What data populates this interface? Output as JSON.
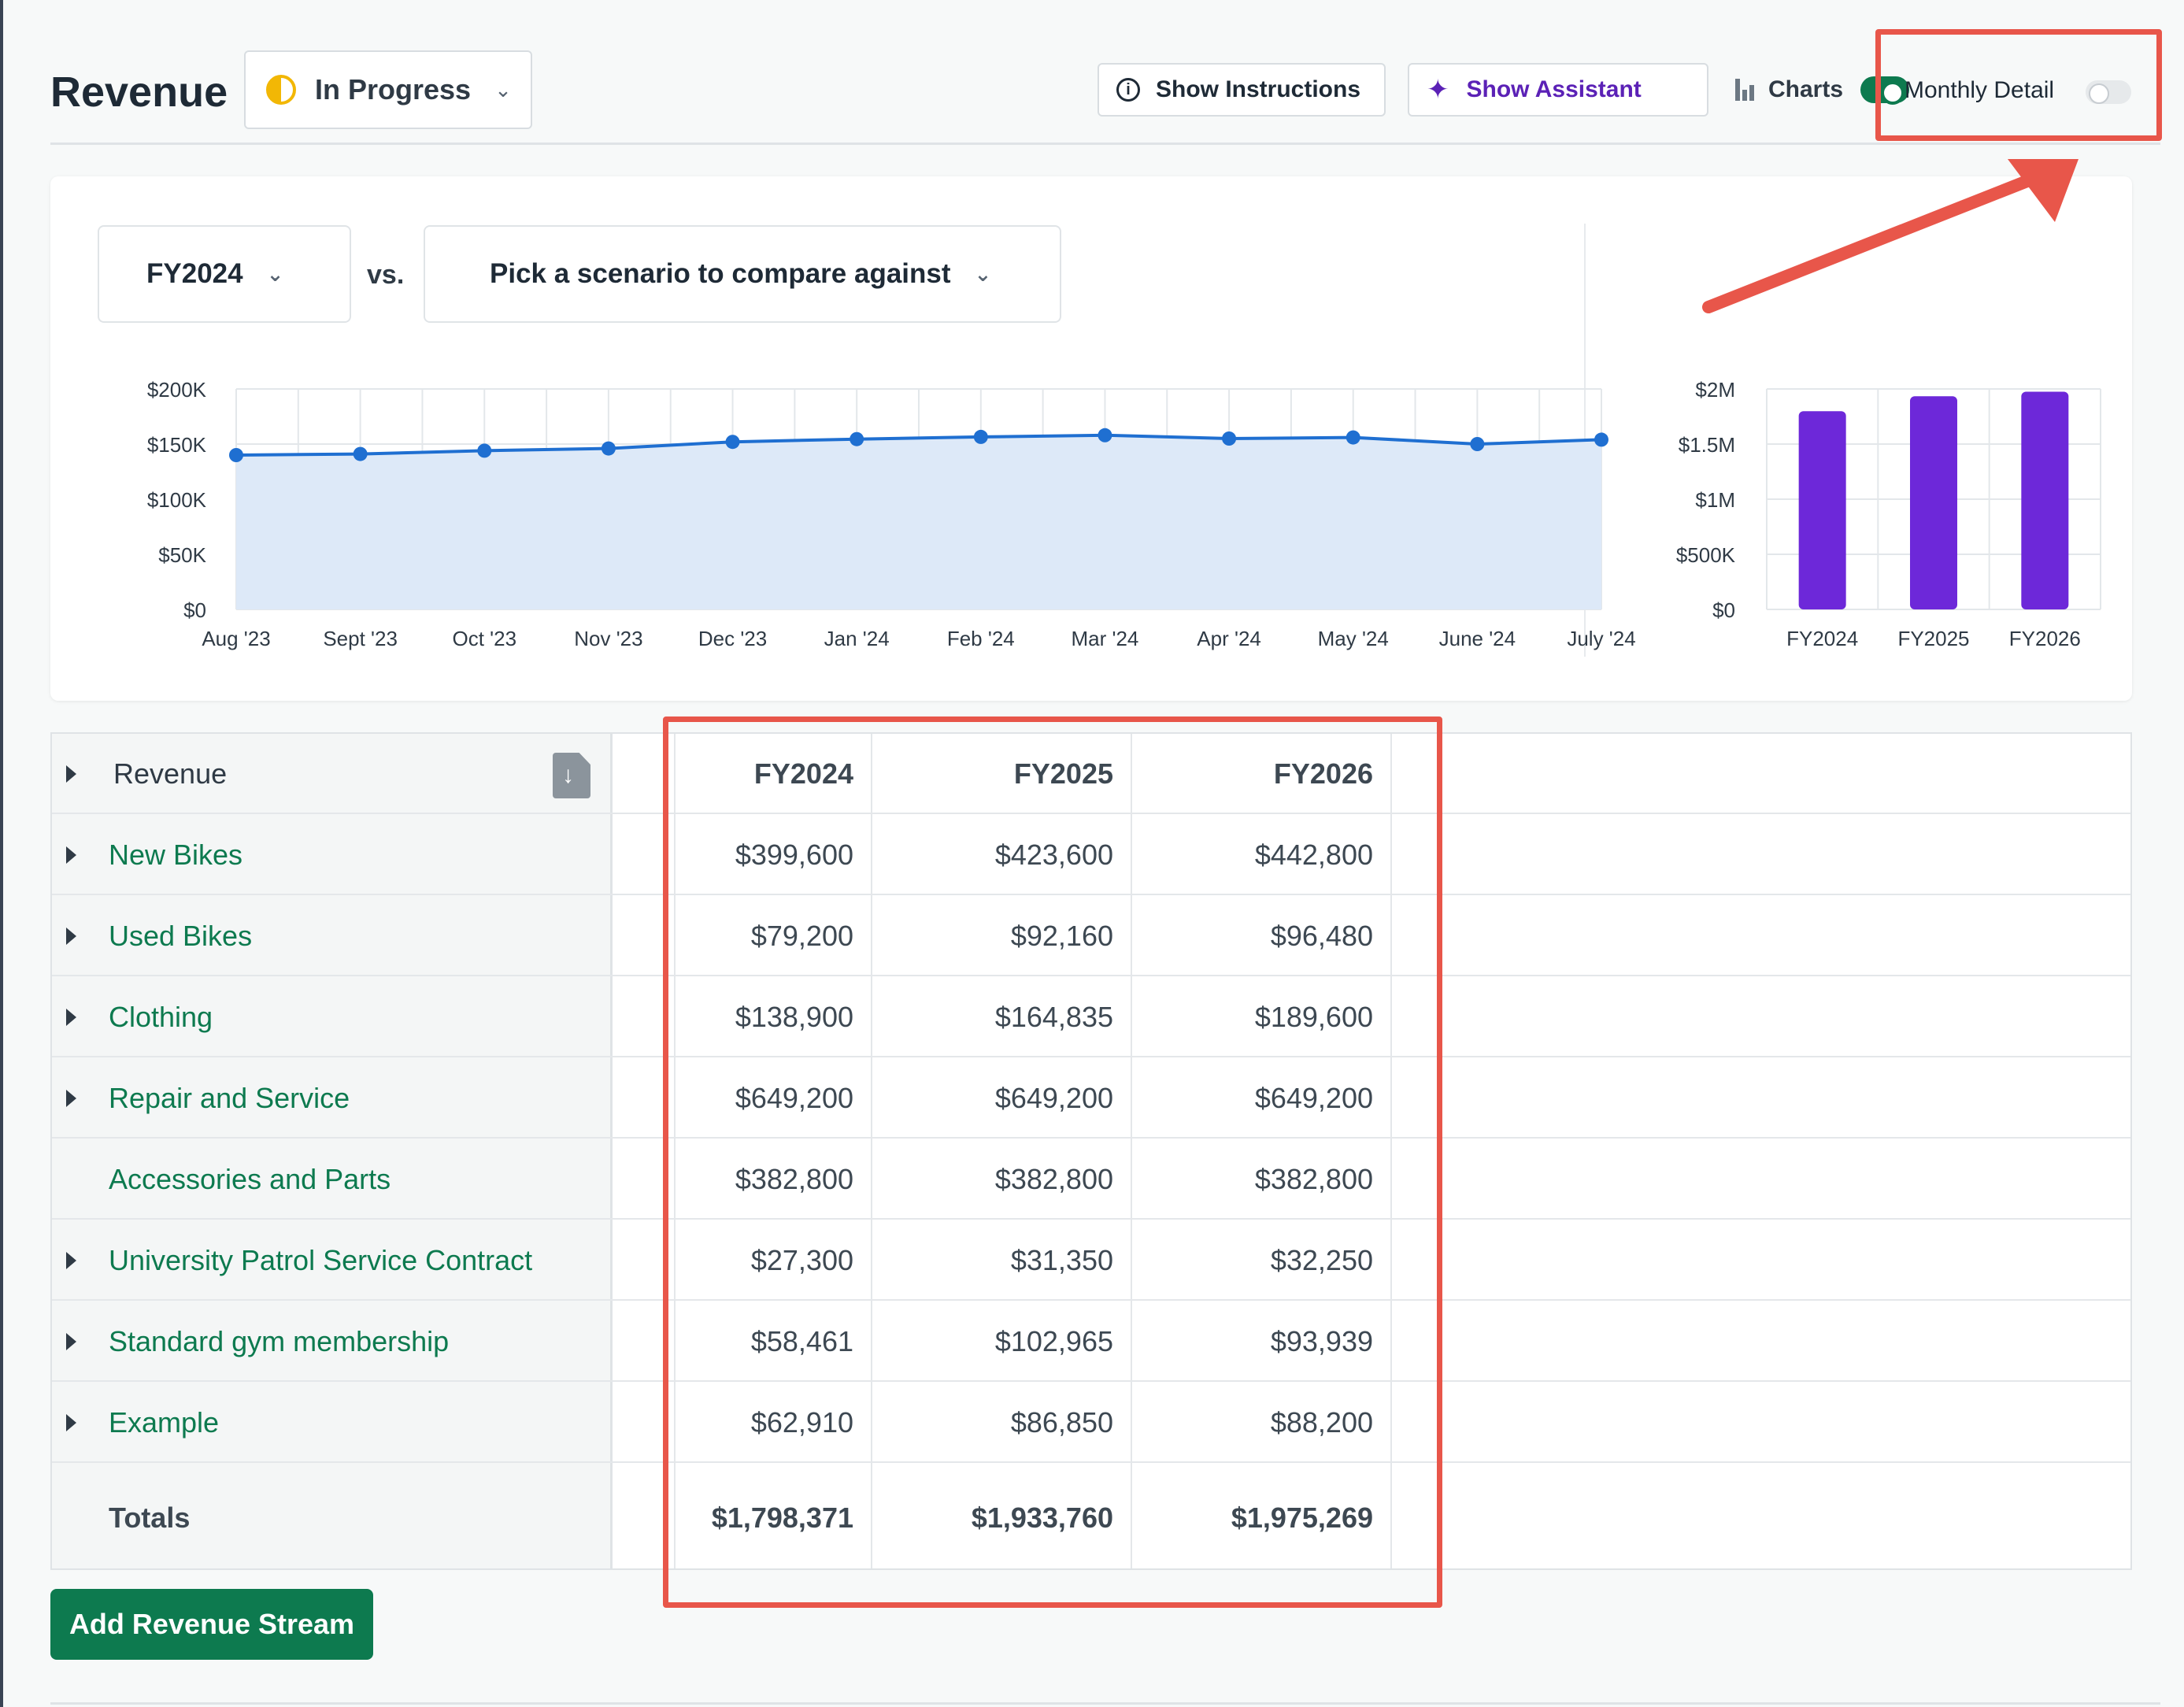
{
  "header": {
    "title": "Revenue",
    "status": "In Progress",
    "show_instructions": "Show Instructions",
    "show_assistant": "Show Assistant",
    "charts_label": "Charts",
    "charts_enabled": true,
    "monthly_detail_label": "Monthly Detail",
    "monthly_detail_enabled": false
  },
  "chart_panel": {
    "scenario": "FY2024",
    "vs_label": "vs.",
    "compare_placeholder": "Pick a scenario to compare against"
  },
  "chart_data": [
    {
      "type": "area",
      "categories": [
        "Aug '23",
        "Sept '23",
        "Oct '23",
        "Nov '23",
        "Dec '23",
        "Jan '24",
        "Feb '24",
        "Mar '24",
        "Apr '24",
        "May '24",
        "June '24",
        "July '24"
      ],
      "values": [
        140000,
        141000,
        144000,
        146000,
        152000,
        154500,
        156500,
        158000,
        155000,
        156000,
        150000,
        154000
      ],
      "y_ticks": [
        "$200K",
        "$150K",
        "$100K",
        "$50K",
        "$0"
      ],
      "ylim": [
        0,
        200000
      ],
      "grid": true,
      "colors": {
        "line": "#1f6fd1",
        "fill": "#dde9f8"
      }
    },
    {
      "type": "bar",
      "categories": [
        "FY2024",
        "FY2025",
        "FY2026"
      ],
      "values": [
        1798371,
        1933760,
        1975269
      ],
      "y_ticks": [
        "$2M",
        "$1.5M",
        "$1M",
        "$500K",
        "$0"
      ],
      "ylim": [
        0,
        2000000
      ],
      "grid": true,
      "colors": {
        "bar": "#6d28d9"
      }
    }
  ],
  "table": {
    "header_label": "Revenue",
    "columns": [
      "FY2024",
      "FY2025",
      "FY2026"
    ],
    "rows": [
      {
        "name": "New Bikes",
        "values": [
          "$399,600",
          "$423,600",
          "$442,800"
        ],
        "expandable": true
      },
      {
        "name": "Used Bikes",
        "values": [
          "$79,200",
          "$92,160",
          "$96,480"
        ],
        "expandable": true
      },
      {
        "name": "Clothing",
        "values": [
          "$138,900",
          "$164,835",
          "$189,600"
        ],
        "expandable": true
      },
      {
        "name": "Repair and Service",
        "values": [
          "$649,200",
          "$649,200",
          "$649,200"
        ],
        "expandable": true
      },
      {
        "name": "Accessories and Parts",
        "values": [
          "$382,800",
          "$382,800",
          "$382,800"
        ],
        "expandable": false
      },
      {
        "name": "University Patrol Service Contract",
        "values": [
          "$27,300",
          "$31,350",
          "$32,250"
        ],
        "expandable": true
      },
      {
        "name": "Standard gym membership",
        "values": [
          "$58,461",
          "$102,965",
          "$93,939"
        ],
        "expandable": true
      },
      {
        "name": "Example",
        "values": [
          "$62,910",
          "$86,850",
          "$88,200"
        ],
        "expandable": true
      }
    ],
    "totals_label": "Totals",
    "totals": [
      "$1,798,371",
      "$1,933,760",
      "$1,975,269"
    ]
  },
  "actions": {
    "add_revenue_stream": "Add Revenue Stream"
  },
  "colors": {
    "brand_green": "#0d7a4f",
    "assistant_purple": "#5b21b6",
    "annotation_red": "#e8564a"
  }
}
